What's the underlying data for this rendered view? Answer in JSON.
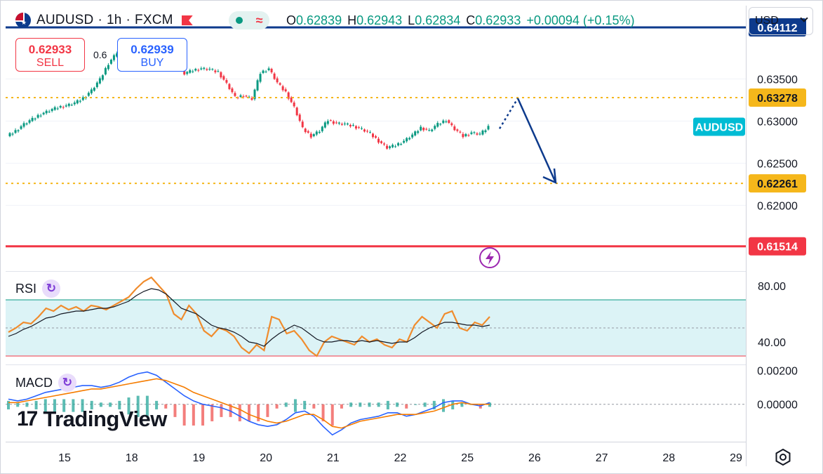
{
  "header": {
    "symbol": "AUDUSD",
    "timeframe": "1h",
    "exchange": "FXCM",
    "separator": "·",
    "ohlc": [
      {
        "key": "O",
        "value": "0.62839"
      },
      {
        "key": "H",
        "value": "0.62943"
      },
      {
        "key": "L",
        "value": "0.62834"
      },
      {
        "key": "C",
        "value": "0.62933"
      }
    ],
    "change": "+0.00094 (+0.15%)"
  },
  "trade": {
    "sell_price": "0.62933",
    "sell_label": "SELL",
    "buy_price": "0.62939",
    "buy_label": "BUY",
    "spread": "0.6"
  },
  "currency": {
    "selected": "USD"
  },
  "colors": {
    "up": "#089981",
    "down": "#f23645",
    "blue_line": "#0d3a8c",
    "red_line": "#f23645",
    "level": "#f5b71b",
    "arrow": "#0d3a8c",
    "rsi": "#f08c2d",
    "rsi_band": "#dcf3f6",
    "macd": "#2962ff",
    "signal": "#f57c00",
    "symbol_tag": "#00bcd4"
  },
  "icons": {
    "status": "dot-icon",
    "wave": "wave-icon",
    "flash": "flash-icon",
    "refresh": "refresh-icon",
    "settings": "settings-icon"
  },
  "chart_data": [
    {
      "type": "candlestick",
      "title": "AUDUSD · 1h · FXCM",
      "x_ticks": [
        "15",
        "18",
        "19",
        "20",
        "21",
        "22",
        "25",
        "26",
        "27",
        "28",
        "29"
      ],
      "y_ticks": [
        "0.63500",
        "0.63000",
        "0.62500",
        "0.62000"
      ],
      "ylim": [
        0.6122,
        0.6437
      ],
      "symbol_tag": "AUDUSD",
      "last_price": 0.62933,
      "price_path": [
        0.6282,
        0.6288,
        0.6296,
        0.6302,
        0.6308,
        0.6312,
        0.6316,
        0.6318,
        0.6321,
        0.6327,
        0.6336,
        0.6349,
        0.6368,
        0.6381,
        0.6392,
        0.6388,
        0.6386,
        0.6382,
        0.639,
        0.6384,
        0.6372,
        0.6356,
        0.636,
        0.6362,
        0.6361,
        0.6358,
        0.6344,
        0.6328,
        0.633,
        0.6326,
        0.6357,
        0.6362,
        0.6345,
        0.6334,
        0.6316,
        0.6291,
        0.6282,
        0.6288,
        0.6301,
        0.6297,
        0.6296,
        0.6294,
        0.629,
        0.6285,
        0.6276,
        0.6268,
        0.6271,
        0.6276,
        0.6283,
        0.6292,
        0.6288,
        0.6296,
        0.6301,
        0.629,
        0.6282,
        0.6286,
        0.6284,
        0.6293
      ],
      "levels": [
        {
          "value": "0.64112",
          "style": "solid",
          "color": "#0d3a8c"
        },
        {
          "value": "0.63278",
          "style": "dotted",
          "color": "#f5b71b"
        },
        {
          "value": "0.62261",
          "style": "dotted",
          "color": "#f5b71b"
        },
        {
          "value": "0.61514",
          "style": "solid",
          "color": "#f23645"
        }
      ],
      "projection": [
        0.6291,
        0.6327,
        0.6227
      ]
    },
    {
      "type": "line",
      "title": "RSI",
      "y_ticks": [
        "80.00",
        "40.00"
      ],
      "ylim": [
        24,
        90
      ],
      "band": [
        30,
        70
      ],
      "mid": 50,
      "series": [
        {
          "values": [
            47,
            50,
            54,
            53,
            58,
            64,
            62,
            66,
            63,
            65,
            62,
            66,
            65,
            63,
            66,
            69,
            72,
            78,
            83,
            86,
            80,
            74,
            60,
            56,
            66,
            60,
            48,
            44,
            50,
            48,
            44,
            36,
            32,
            38,
            34,
            58,
            56,
            46,
            48,
            42,
            34,
            30,
            40,
            44,
            42,
            40,
            38,
            44,
            40,
            42,
            38,
            36,
            42,
            40,
            52,
            58,
            54,
            50,
            60,
            62,
            50,
            48,
            54,
            52,
            58
          ]
        },
        {
          "values": [
            44,
            46,
            49,
            51,
            54,
            57,
            58,
            60,
            61,
            62,
            62,
            63,
            64,
            64,
            65,
            67,
            69,
            73,
            76,
            78,
            77,
            74,
            69,
            64,
            62,
            60,
            56,
            52,
            50,
            49,
            47,
            44,
            40,
            39,
            37,
            42,
            46,
            49,
            52,
            50,
            46,
            42,
            40,
            40,
            41,
            41,
            40,
            41,
            40,
            41,
            40,
            39,
            40,
            40,
            43,
            47,
            50,
            52,
            54,
            54,
            53,
            52,
            52,
            51,
            52
          ]
        }
      ]
    },
    {
      "type": "line",
      "title": "MACD",
      "y_ticks": [
        "0.00200",
        "0.00000"
      ],
      "ylim": [
        -0.0022,
        0.0023
      ],
      "zero": 0,
      "series": [
        {
          "values": [
            0.0003,
            0.0002,
            0.0003,
            0.0005,
            0.0007,
            0.0008,
            0.0009,
            0.001,
            0.0011,
            0.0011,
            0.001,
            0.0011,
            0.0013,
            0.0016,
            0.0018,
            0.0019,
            0.0017,
            0.0013,
            0.0009,
            0.0005,
            0.0002,
            0.0,
            -0.0001,
            -0.0002,
            -0.0004,
            -0.0007,
            -0.001,
            -0.0012,
            -0.0013,
            -0.0012,
            -0.0009,
            -0.0005,
            -0.0004,
            -0.0007,
            -0.0013,
            -0.0018,
            -0.0015,
            -0.0011,
            -0.0009,
            -0.0008,
            -0.0007,
            -0.0005,
            -0.0005,
            -0.0007,
            -0.0006,
            -0.0004,
            -0.0002,
            0.0001,
            0.0002,
            0.0002,
            0.0,
            -0.0001,
            0.0001
          ]
        },
        {
          "values": [
            0.0001,
            0.0001,
            0.0002,
            0.0003,
            0.0004,
            0.0005,
            0.0006,
            0.0007,
            0.0008,
            0.0009,
            0.0009,
            0.001,
            0.0011,
            0.0012,
            0.0013,
            0.0014,
            0.0015,
            0.0014,
            0.0012,
            0.001,
            0.0007,
            0.0005,
            0.0003,
            0.0001,
            -0.0001,
            -0.0003,
            -0.0006,
            -0.0008,
            -0.001,
            -0.0011,
            -0.001,
            -0.0008,
            -0.0006,
            -0.0006,
            -0.0009,
            -0.0013,
            -0.0014,
            -0.0012,
            -0.001,
            -0.0009,
            -0.0008,
            -0.0007,
            -0.0006,
            -0.0006,
            -0.0006,
            -0.0005,
            -0.0004,
            -0.0002,
            0.0,
            0.0001,
            0.0,
            0.0,
            0.0
          ]
        }
      ]
    }
  ],
  "watermark": "TradingView"
}
